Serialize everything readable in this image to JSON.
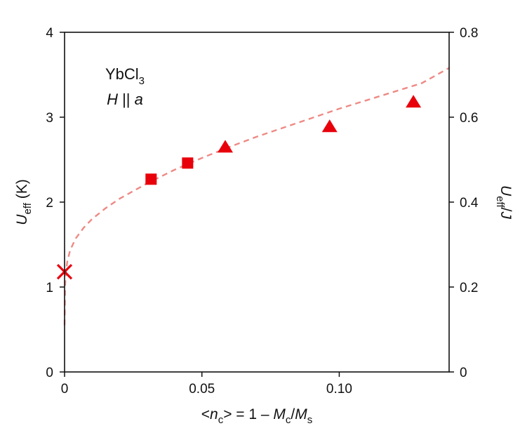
{
  "chart_data": {
    "type": "scatter",
    "title": "",
    "xlim": [
      0,
      0.14
    ],
    "ylim": [
      0,
      4
    ],
    "y2lim": [
      0,
      0.8
    ],
    "grid": false,
    "legend": "none",
    "x_ticks": [
      0,
      0.05,
      0.1
    ],
    "x_tick_labels": [
      "0",
      "0.05",
      "0.10"
    ],
    "y_ticks": [
      0,
      1,
      2,
      3,
      4
    ],
    "y_tick_labels": [
      "0",
      "1",
      "2",
      "3",
      "4"
    ],
    "y2_ticks": [
      0,
      0.2,
      0.4,
      0.6,
      0.8
    ],
    "y2_tick_labels": [
      "0",
      "0.2",
      "0.4",
      "0.6",
      "0.8"
    ],
    "xlabel": {
      "open": "<",
      "var": "n",
      "var_sub": "c",
      "mid": "> = 1 – ",
      "num": "M",
      "num_sub": "c",
      "slash": "/",
      "den": "M",
      "den_sub": "s"
    },
    "ylabel": {
      "var": "U",
      "sub": "eff",
      "rest": " (K)"
    },
    "y2label": {
      "var": "U",
      "sub": "eff",
      "slash": "/",
      "den": "J"
    },
    "annotation": {
      "line1_main": "YbCl",
      "line1_sub": "3",
      "line2_var": "H",
      "line2_mid": " || ",
      "line2_dir": "a"
    },
    "colors": {
      "markers": "#e8000b",
      "fit_line": "#ee8a85",
      "axes": "#111111"
    },
    "series": [
      {
        "marker": "cross",
        "points": [
          {
            "x": 0.0,
            "y": 1.18
          }
        ]
      },
      {
        "marker": "square",
        "points": [
          {
            "x": 0.0315,
            "y": 2.27
          },
          {
            "x": 0.0448,
            "y": 2.46
          }
        ]
      },
      {
        "marker": "triangle",
        "points": [
          {
            "x": 0.0585,
            "y": 2.65
          },
          {
            "x": 0.0965,
            "y": 2.89
          },
          {
            "x": 0.127,
            "y": 3.18
          }
        ]
      },
      {
        "marker": "dashed-line",
        "points": [
          {
            "x": 0.0,
            "y": 0.55
          },
          {
            "x": 0.0002,
            "y": 1.02
          },
          {
            "x": 0.0005,
            "y": 1.18
          },
          {
            "x": 0.001,
            "y": 1.3
          },
          {
            "x": 0.002,
            "y": 1.43
          },
          {
            "x": 0.004,
            "y": 1.57
          },
          {
            "x": 0.007,
            "y": 1.7
          },
          {
            "x": 0.01,
            "y": 1.8
          },
          {
            "x": 0.015,
            "y": 1.93
          },
          {
            "x": 0.02,
            "y": 2.04
          },
          {
            "x": 0.03,
            "y": 2.22
          },
          {
            "x": 0.04,
            "y": 2.38
          },
          {
            "x": 0.05,
            "y": 2.52
          },
          {
            "x": 0.06,
            "y": 2.65
          },
          {
            "x": 0.07,
            "y": 2.77
          },
          {
            "x": 0.08,
            "y": 2.88
          },
          {
            "x": 0.09,
            "y": 2.99
          },
          {
            "x": 0.1,
            "y": 3.1
          },
          {
            "x": 0.11,
            "y": 3.2
          },
          {
            "x": 0.12,
            "y": 3.3
          },
          {
            "x": 0.13,
            "y": 3.4
          },
          {
            "x": 0.14,
            "y": 3.58
          }
        ]
      }
    ]
  }
}
